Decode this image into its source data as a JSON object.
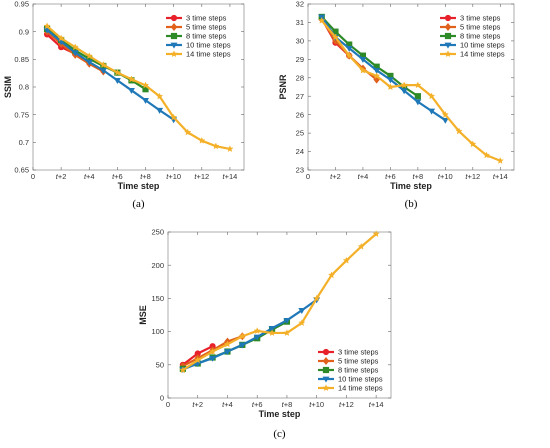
{
  "chart_data": [
    {
      "id": "a",
      "type": "line",
      "caption": "(a)",
      "xlabel": "Time step",
      "ylabel": "SSIM",
      "xlim": [
        0,
        15
      ],
      "ylim": [
        0.65,
        0.95
      ],
      "yticks": [
        0.65,
        0.7,
        0.75,
        0.8,
        0.85,
        0.9,
        0.95
      ],
      "ytick_labels": [
        "0.65",
        "0.7",
        "0.75",
        "0.8",
        "0.85",
        "0.9",
        "0.95"
      ],
      "xticks": [
        0,
        2,
        4,
        6,
        8,
        10,
        12,
        14
      ],
      "xtick_labels": [
        "0",
        "t+2",
        "t+4",
        "t+6",
        "t+8",
        "t+10",
        "t+12",
        "t+14"
      ],
      "legend_position": "top-right",
      "series": [
        {
          "name": "3 time steps",
          "color": "#e8202a",
          "marker": "circle",
          "x": [
            1,
            2,
            3
          ],
          "y": [
            0.895,
            0.872,
            0.86
          ]
        },
        {
          "name": "5 time steps",
          "color": "#e0601c",
          "marker": "diamond",
          "x": [
            1,
            2,
            3,
            4,
            5
          ],
          "y": [
            0.9,
            0.878,
            0.858,
            0.842,
            0.828
          ]
        },
        {
          "name": "8 time steps",
          "color": "#2d8a27",
          "marker": "square",
          "x": [
            1,
            2,
            3,
            4,
            5,
            6,
            7,
            8
          ],
          "y": [
            0.905,
            0.885,
            0.866,
            0.851,
            0.838,
            0.826,
            0.812,
            0.796
          ]
        },
        {
          "name": "10 time steps",
          "color": "#1f78b8",
          "marker": "triangle-down",
          "x": [
            1,
            2,
            3,
            4,
            5,
            6,
            7,
            8,
            9,
            10
          ],
          "y": [
            0.903,
            0.882,
            0.862,
            0.845,
            0.83,
            0.812,
            0.794,
            0.776,
            0.758,
            0.741
          ]
        },
        {
          "name": "14 time steps",
          "color": "#f4b028",
          "marker": "star",
          "x": [
            1,
            2,
            3,
            4,
            5,
            6,
            7,
            8,
            9,
            10,
            11,
            12,
            13,
            14
          ],
          "y": [
            0.91,
            0.888,
            0.872,
            0.856,
            0.84,
            0.826,
            0.814,
            0.803,
            0.783,
            0.745,
            0.718,
            0.703,
            0.693,
            0.688
          ]
        }
      ]
    },
    {
      "id": "b",
      "type": "line",
      "caption": "(b)",
      "xlabel": "Time step",
      "ylabel": "PSNR",
      "xlim": [
        0,
        15
      ],
      "ylim": [
        23,
        32
      ],
      "yticks": [
        23,
        24,
        25,
        26,
        27,
        28,
        29,
        30,
        31,
        32
      ],
      "ytick_labels": [
        "23",
        "24",
        "25",
        "26",
        "27",
        "28",
        "29",
        "30",
        "31",
        "32"
      ],
      "xticks": [
        0,
        2,
        4,
        6,
        8,
        10,
        12,
        14
      ],
      "xtick_labels": [
        "0",
        "t+2",
        "t+4",
        "t+6",
        "t+8",
        "t+10",
        "t+12",
        "t+14"
      ],
      "legend_position": "top-right",
      "series": [
        {
          "name": "3 time steps",
          "color": "#e8202a",
          "marker": "circle",
          "x": [
            1,
            2,
            3
          ],
          "y": [
            31.2,
            29.9,
            29.2
          ]
        },
        {
          "name": "5 time steps",
          "color": "#e0601c",
          "marker": "diamond",
          "x": [
            1,
            2,
            3,
            4,
            5
          ],
          "y": [
            31.2,
            30.0,
            29.2,
            28.5,
            27.9
          ]
        },
        {
          "name": "8 time steps",
          "color": "#2d8a27",
          "marker": "square",
          "x": [
            1,
            2,
            3,
            4,
            5,
            6,
            7,
            8
          ],
          "y": [
            31.3,
            30.5,
            29.8,
            29.2,
            28.6,
            28.1,
            27.5,
            27.0
          ]
        },
        {
          "name": "10 time steps",
          "color": "#1f78b8",
          "marker": "triangle-down",
          "x": [
            1,
            2,
            3,
            4,
            5,
            6,
            7,
            8,
            9,
            10
          ],
          "y": [
            31.3,
            30.2,
            29.6,
            29.0,
            28.4,
            27.9,
            27.3,
            26.7,
            26.2,
            25.7
          ]
        },
        {
          "name": "14 time steps",
          "color": "#f4b028",
          "marker": "star",
          "x": [
            1,
            2,
            3,
            4,
            5,
            6,
            7,
            8,
            9,
            10,
            11,
            12,
            13,
            14
          ],
          "y": [
            31.1,
            30.2,
            29.2,
            28.4,
            28.1,
            27.5,
            27.6,
            27.6,
            27.0,
            26.0,
            25.1,
            24.4,
            23.8,
            23.5
          ]
        }
      ]
    },
    {
      "id": "c",
      "type": "line",
      "caption": "(c)",
      "xlabel": "Time step",
      "ylabel": "MSE",
      "xlim": [
        0,
        15
      ],
      "ylim": [
        0,
        250
      ],
      "yticks": [
        0,
        50,
        100,
        150,
        200,
        250
      ],
      "ytick_labels": [
        "0",
        "50",
        "100",
        "150",
        "200",
        "250"
      ],
      "xticks": [
        0,
        2,
        4,
        6,
        8,
        10,
        12,
        14
      ],
      "xtick_labels": [
        "0",
        "t+2",
        "t+4",
        "t+6",
        "t+8",
        "t+10",
        "t+12",
        "t+14"
      ],
      "legend_position": "lower-right",
      "series": [
        {
          "name": "3 time steps",
          "color": "#e8202a",
          "marker": "circle",
          "x": [
            1,
            2,
            3
          ],
          "y": [
            50,
            67,
            78
          ]
        },
        {
          "name": "5 time steps",
          "color": "#e0601c",
          "marker": "diamond",
          "x": [
            1,
            2,
            3,
            4,
            5
          ],
          "y": [
            48,
            60,
            72,
            85,
            93
          ]
        },
        {
          "name": "8 time steps",
          "color": "#2d8a27",
          "marker": "square",
          "x": [
            1,
            2,
            3,
            4,
            5,
            6,
            7,
            8
          ],
          "y": [
            44,
            52,
            61,
            70,
            80,
            90,
            103,
            115
          ]
        },
        {
          "name": "10 time steps",
          "color": "#1f78b8",
          "marker": "triangle-down",
          "x": [
            1,
            2,
            3,
            4,
            5,
            6,
            7,
            8,
            9,
            10
          ],
          "y": [
            43,
            52,
            60,
            70,
            80,
            92,
            105,
            117,
            132,
            148
          ]
        },
        {
          "name": "14 time steps",
          "color": "#f4b028",
          "marker": "star",
          "x": [
            1,
            2,
            3,
            4,
            5,
            6,
            7,
            8,
            9,
            10,
            11,
            12,
            13,
            14
          ],
          "y": [
            42,
            57,
            70,
            81,
            93,
            101,
            98,
            98,
            113,
            150,
            185,
            207,
            228,
            247
          ]
        }
      ]
    }
  ]
}
